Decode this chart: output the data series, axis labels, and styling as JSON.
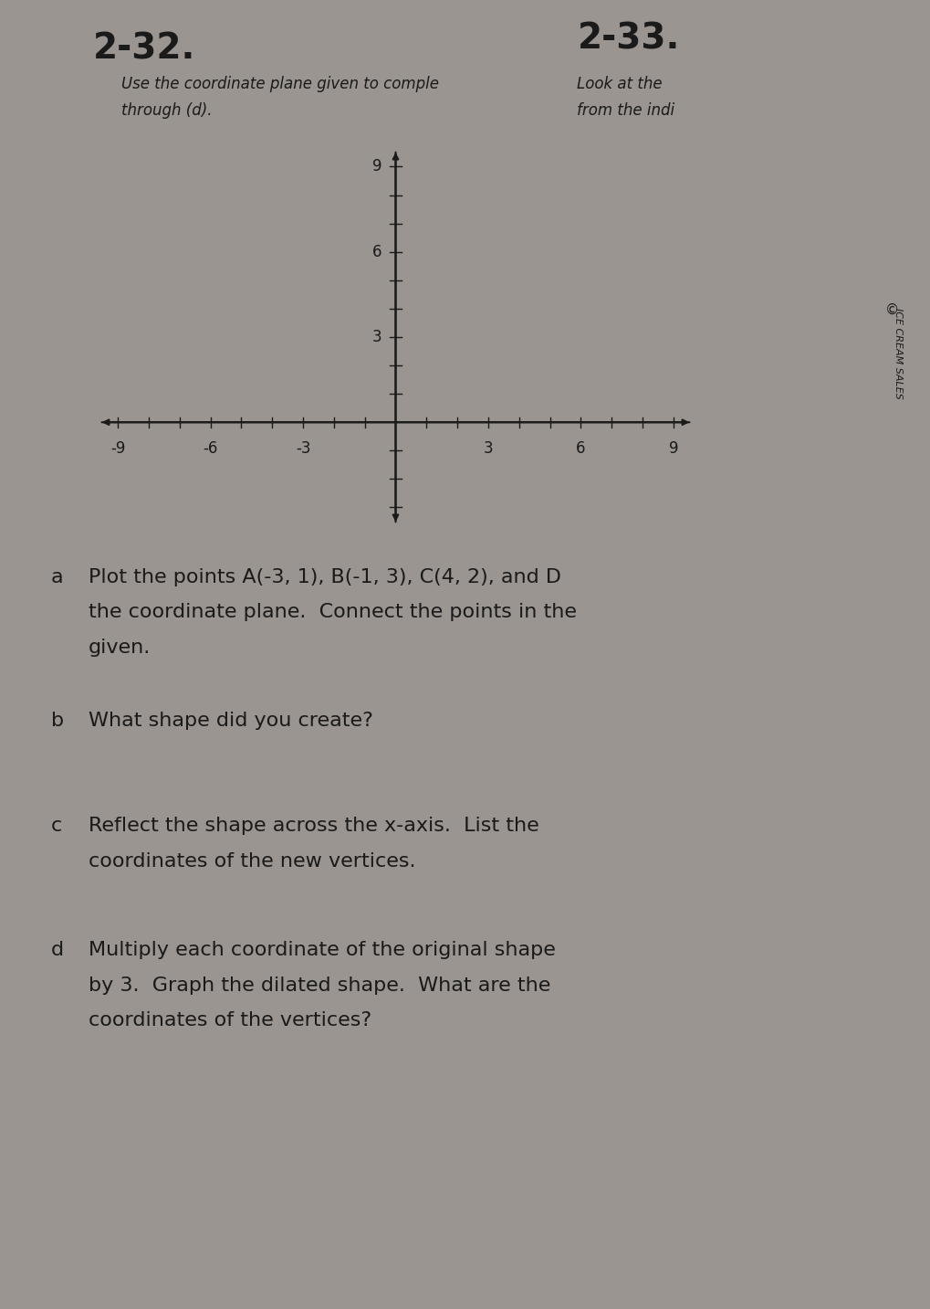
{
  "background_color": "#9a9590",
  "title1": "2-32.",
  "title2": "2-33.",
  "subtitle1": "Use the coordinate plane given to comple",
  "subtitle2": "Look at the",
  "subtitle3": "through (d).",
  "subtitle4": "from the indi",
  "axis_xmin": -9,
  "axis_xmax": 9,
  "axis_ymin": -3,
  "axis_ymax": 9,
  "x_ticks": [
    -9,
    -8,
    -7,
    -6,
    -5,
    -4,
    -3,
    -2,
    -1,
    0,
    1,
    2,
    3,
    4,
    5,
    6,
    7,
    8,
    9
  ],
  "y_ticks": [
    -3,
    -2,
    -1,
    0,
    1,
    2,
    3,
    4,
    5,
    6,
    7,
    8,
    9
  ],
  "x_tick_labels_show": [
    -9,
    -6,
    -3,
    3,
    6,
    9
  ],
  "y_tick_labels_show": [
    3,
    6,
    9
  ],
  "font_size_title": 28,
  "font_size_subtitle": 12,
  "font_size_body": 16,
  "font_size_tick": 12,
  "text_color": "#1a1a1a",
  "axis_color": "#1a1a1a",
  "label_a": "a",
  "label_b": "b",
  "label_c": "c",
  "label_d": "d",
  "text_a1": "Plot the points A(-3, 1), B(-1, 3), C(4, 2), and D",
  "text_a2": "the coordinate plane.  Connect the points in the",
  "text_a3": "given.",
  "text_b1": "What shape did you create?",
  "text_c1": "Reflect the shape across the x-axis.  List the",
  "text_c2": "coordinates of the new vertices.",
  "text_d1": "Multiply each coordinate of the original shape",
  "text_d2": "by 3.  Graph the dilated shape.  What are the",
  "text_d3": "coordinates of the vertices?",
  "side_text": "ICE CREAM SALES"
}
